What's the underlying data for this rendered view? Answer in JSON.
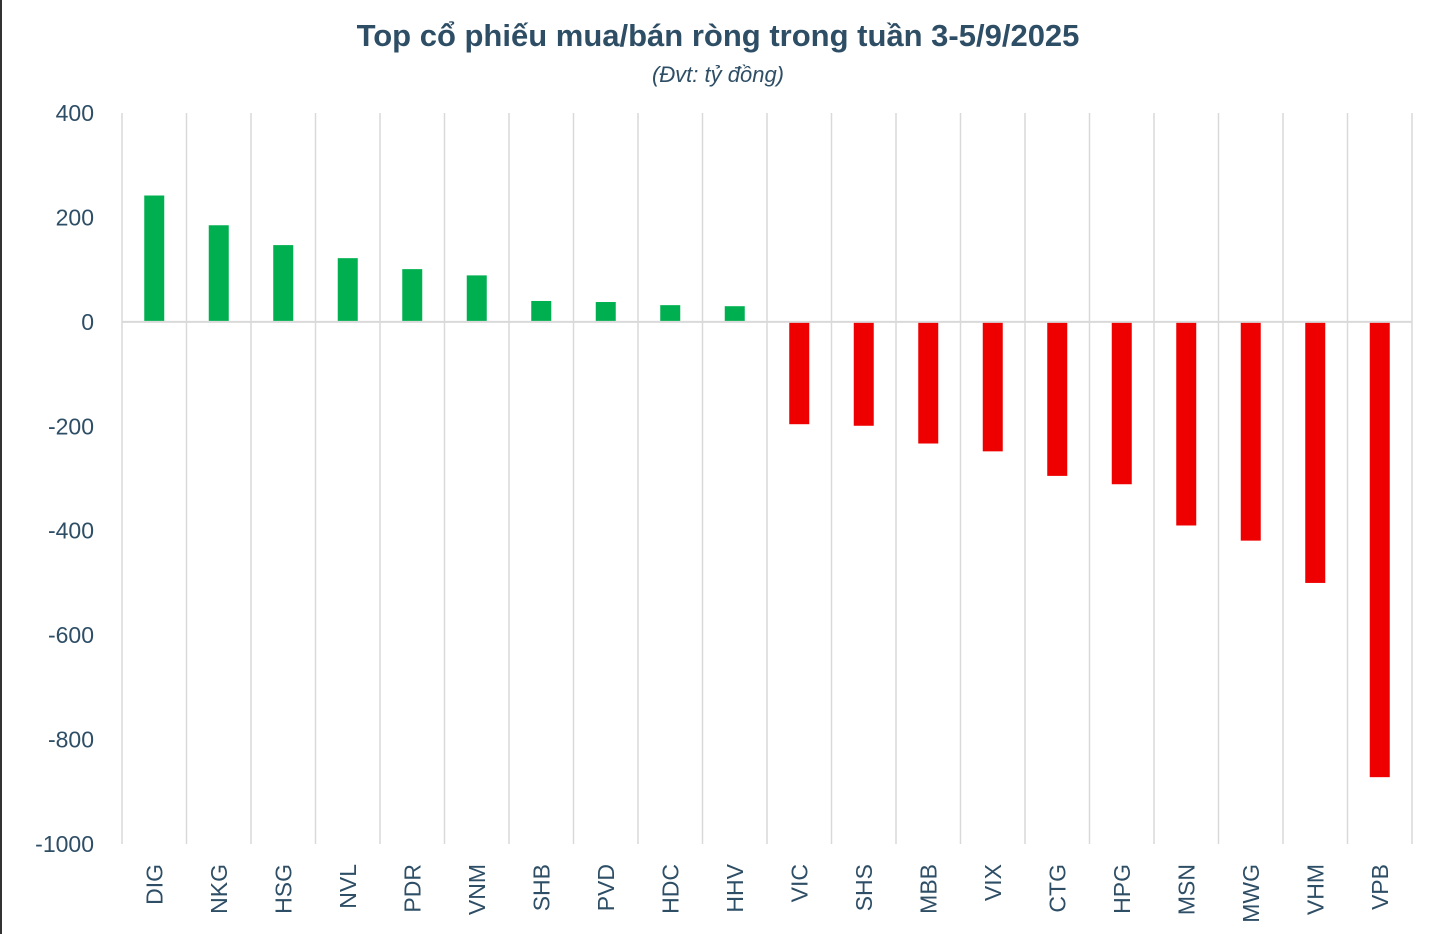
{
  "chart_data": {
    "type": "bar",
    "title": "Top cổ phiếu mua/bán ròng trong tuần 3-5/9/2025",
    "subtitle": "(Đvt: tỷ đồng)",
    "xlabel": "",
    "ylabel": "",
    "ylim": [
      -1000,
      400
    ],
    "yticks": [
      400,
      200,
      0,
      -200,
      -400,
      -600,
      -800,
      -1000
    ],
    "grid": "vertical",
    "categories": [
      "DIG",
      "NKG",
      "HSG",
      "NVL",
      "PDR",
      "VNM",
      "SHB",
      "PVD",
      "HDC",
      "HHV",
      "VIC",
      "SHS",
      "MBB",
      "VIX",
      "CTG",
      "HPG",
      "MSN",
      "MWG",
      "VHM",
      "VPB"
    ],
    "values": [
      242,
      185,
      147,
      122,
      101,
      89,
      40,
      38,
      32,
      30,
      -196,
      -199,
      -233,
      -248,
      -295,
      -311,
      -390,
      -419,
      -500,
      -872
    ],
    "colors": {
      "positive": "#00b050",
      "negative": "#ee0000",
      "text": "#2e4e66",
      "grid": "#d9d9d9"
    }
  }
}
